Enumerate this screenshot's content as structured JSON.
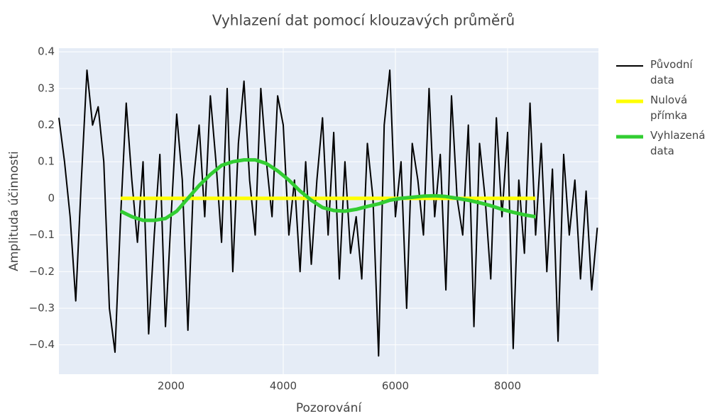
{
  "chart_data": {
    "type": "line",
    "title": "Vyhlazení dat pomocí klouzavých průměrů",
    "x_label": "Pozorování",
    "y_label": "Amplituda účinnosti",
    "xlim": [
      0,
      9620
    ],
    "ylim": [
      -0.48,
      0.41
    ],
    "xticks": [
      2000,
      4000,
      6000,
      8000
    ],
    "yticks": [
      {
        "value": -0.4,
        "label": "−0.4"
      },
      {
        "value": -0.3,
        "label": "−0.3"
      },
      {
        "value": -0.2,
        "label": "−0.2"
      },
      {
        "value": -0.1,
        "label": "−0.1"
      },
      0,
      0.1,
      0.2,
      0.3,
      0.4
    ],
    "grid": true,
    "series": [
      {
        "name": "Původní data",
        "color": "#000000",
        "x": [
          0,
          100,
          200,
          300,
          400,
          500,
          600,
          700,
          800,
          900,
          1000,
          1100,
          1200,
          1300,
          1400,
          1500,
          1600,
          1700,
          1800,
          1900,
          2000,
          2100,
          2200,
          2300,
          2400,
          2500,
          2600,
          2700,
          2800,
          2900,
          3000,
          3100,
          3200,
          3300,
          3400,
          3500,
          3600,
          3700,
          3800,
          3900,
          4000,
          4100,
          4200,
          4300,
          4400,
          4500,
          4600,
          4700,
          4800,
          4900,
          5000,
          5100,
          5200,
          5300,
          5400,
          5500,
          5600,
          5700,
          5800,
          5900,
          6000,
          6100,
          6200,
          6300,
          6400,
          6500,
          6600,
          6700,
          6800,
          6900,
          7000,
          7100,
          7200,
          7300,
          7400,
          7500,
          7600,
          7700,
          7800,
          7900,
          8000,
          8100,
          8200,
          8300,
          8400,
          8500,
          8600,
          8700,
          8800,
          8900,
          9000,
          9100,
          9200,
          9300,
          9400,
          9500,
          9600
        ],
        "values": [
          0.22,
          0.1,
          -0.05,
          -0.28,
          0.05,
          0.35,
          0.2,
          0.25,
          0.1,
          -0.3,
          -0.42,
          -0.05,
          0.26,
          0.05,
          -0.12,
          0.1,
          -0.37,
          -0.1,
          0.12,
          -0.35,
          -0.05,
          0.23,
          0.05,
          -0.36,
          0.05,
          0.2,
          -0.05,
          0.28,
          0.1,
          -0.12,
          0.3,
          -0.2,
          0.15,
          0.32,
          0.05,
          -0.1,
          0.3,
          0.1,
          -0.05,
          0.28,
          0.2,
          -0.1,
          0.05,
          -0.2,
          0.1,
          -0.18,
          0.05,
          0.22,
          -0.1,
          0.18,
          -0.22,
          0.1,
          -0.15,
          -0.05,
          -0.22,
          0.15,
          0.0,
          -0.43,
          0.2,
          0.35,
          -0.05,
          0.1,
          -0.3,
          0.15,
          0.05,
          -0.1,
          0.3,
          -0.05,
          0.12,
          -0.25,
          0.28,
          0.0,
          -0.1,
          0.2,
          -0.35,
          0.15,
          0.0,
          -0.22,
          0.22,
          -0.05,
          0.18,
          -0.41,
          0.05,
          -0.15,
          0.26,
          -0.1,
          0.15,
          -0.2,
          0.08,
          -0.39,
          0.12,
          -0.1,
          0.05,
          -0.22,
          0.02,
          -0.25,
          -0.08
        ],
        "width": 2
      },
      {
        "name": "Nulová přímka",
        "color": "#ffff00",
        "x": [
          1100,
          8500
        ],
        "values": [
          0,
          0
        ],
        "width": 5
      },
      {
        "name": "Vyhlazená data",
        "color": "#32cd32",
        "x": [
          1100,
          1300,
          1500,
          1700,
          1900,
          2100,
          2300,
          2500,
          2700,
          2900,
          3100,
          3300,
          3500,
          3700,
          3900,
          4100,
          4300,
          4500,
          4700,
          4900,
          5100,
          5300,
          5500,
          5700,
          5900,
          6100,
          6300,
          6500,
          6700,
          6900,
          7100,
          7300,
          7500,
          7700,
          7900,
          8100,
          8300,
          8500
        ],
        "values": [
          -0.035,
          -0.05,
          -0.06,
          -0.06,
          -0.055,
          -0.035,
          0.0,
          0.035,
          0.065,
          0.09,
          0.1,
          0.105,
          0.105,
          0.095,
          0.075,
          0.05,
          0.02,
          -0.005,
          -0.025,
          -0.033,
          -0.035,
          -0.03,
          -0.022,
          -0.015,
          -0.005,
          0.0,
          0.003,
          0.006,
          0.007,
          0.005,
          0.0,
          -0.005,
          -0.012,
          -0.02,
          -0.03,
          -0.038,
          -0.045,
          -0.05
        ],
        "width": 5
      }
    ]
  }
}
